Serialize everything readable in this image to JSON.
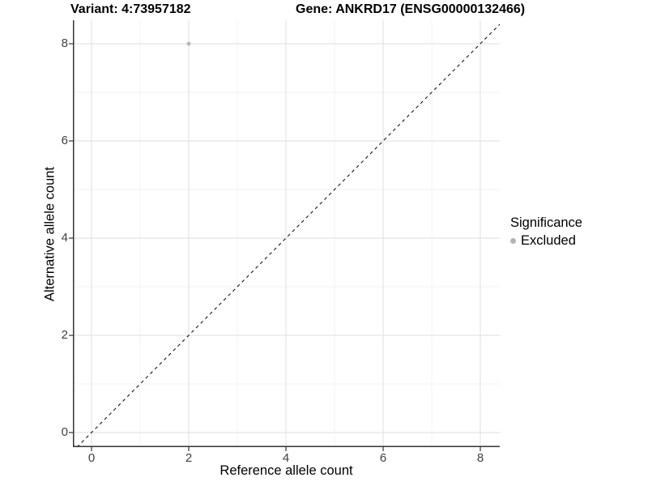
{
  "titles": {
    "variant": "Variant: 4:73957182",
    "gene": "Gene: ANKRD17 (ENSG00000132466)"
  },
  "axes": {
    "x_label": "Reference allele count",
    "y_label": "Alternative allele count",
    "x_tick_labels": [
      "0",
      "2",
      "4",
      "6",
      "8"
    ],
    "y_tick_labels_top_to_bottom": [
      "8",
      "6",
      "4",
      "2",
      "0"
    ]
  },
  "legend": {
    "title": "Significance",
    "items": [
      {
        "label": "Excluded",
        "color": "#b3b3b3"
      }
    ]
  },
  "colors": {
    "background": "#ffffff",
    "grid_major": "#e4e4e4",
    "grid_minor": "#f2f2f2",
    "axis_line": "#333333",
    "tick_mark": "#333333",
    "tick_label": "#404040",
    "point": "#b9b9b9",
    "identity_line": "#000000"
  },
  "chart_data": {
    "type": "scatter",
    "title": "Variant: 4:73957182",
    "subtitle": "Gene: ANKRD17 (ENSG00000132466)",
    "xlabel": "Reference allele count",
    "ylabel": "Alternative allele count",
    "xlim": [
      -0.4,
      8.4
    ],
    "ylim": [
      -0.3,
      8.47
    ],
    "x_ticks": [
      0,
      2,
      4,
      6,
      8
    ],
    "y_ticks": [
      0,
      2,
      4,
      6,
      8
    ],
    "x_minor_ticks": [
      1,
      3,
      5,
      7
    ],
    "y_minor_ticks": [
      1,
      3,
      5,
      7
    ],
    "grid": "major+minor",
    "legend_position": "right",
    "series": [
      {
        "name": "Excluded",
        "color": "#b9b9b9",
        "marker": "circle",
        "marker_radius_px": 2.5,
        "points": [
          {
            "x": 2,
            "y": 8
          }
        ]
      }
    ],
    "reference_line": {
      "kind": "identity y=x",
      "style": "dashed",
      "color": "#000000"
    }
  }
}
